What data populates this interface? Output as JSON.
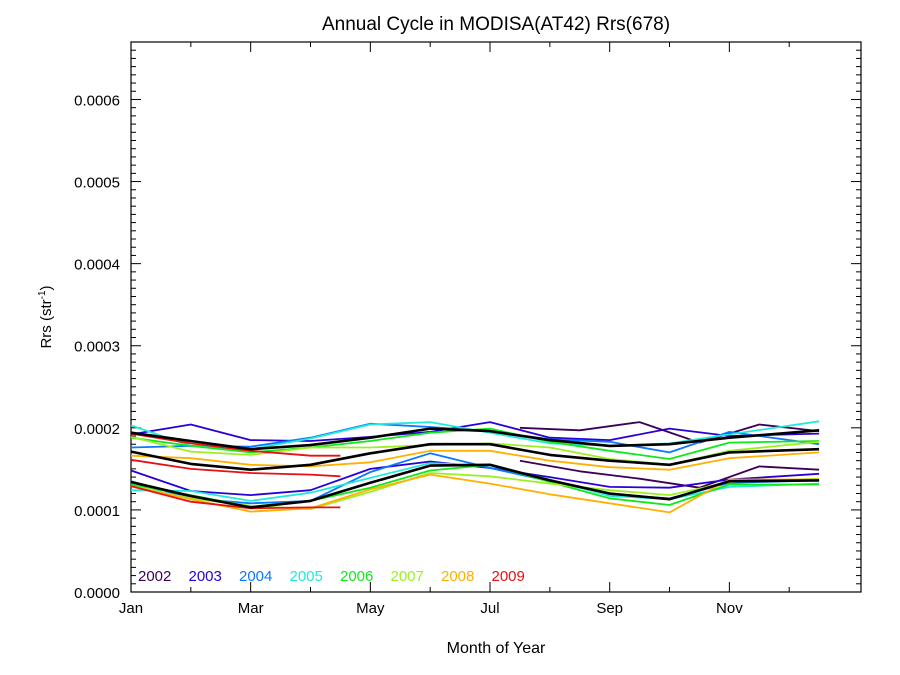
{
  "chart_data": {
    "type": "line",
    "title": "Annual Cycle in MODISA(AT42) Rrs(678)",
    "xlabel": "Month of Year",
    "ylabel": "Rrs (str",
    "ylabel_superscript": "-1",
    "ylabel_close": ")",
    "xlim": [
      1,
      13.2
    ],
    "ylim": [
      0,
      0.00067
    ],
    "x_ticks": [
      {
        "value": 1,
        "label": "Jan"
      },
      {
        "value": 3,
        "label": "Mar"
      },
      {
        "value": 5,
        "label": "May"
      },
      {
        "value": 7,
        "label": "Jul"
      },
      {
        "value": 9,
        "label": "Sep"
      },
      {
        "value": 11,
        "label": "Nov"
      }
    ],
    "y_ticks": [
      {
        "value": 0.0,
        "label": "0.0000"
      },
      {
        "value": 0.0001,
        "label": "0.0001"
      },
      {
        "value": 0.0002,
        "label": "0.0002"
      },
      {
        "value": 0.0003,
        "label": "0.0003"
      },
      {
        "value": 0.0004,
        "label": "0.0004"
      },
      {
        "value": 0.0005,
        "label": "0.0005"
      },
      {
        "value": 0.0006,
        "label": "0.0006"
      }
    ],
    "grid": false,
    "legend_position": "bottom-left",
    "series": [
      {
        "name": "2002",
        "color": "#3d0057",
        "lines": [
          {
            "x": [
              7.5,
              8.5,
              9.5,
              10.5,
              11.5,
              12.5
            ],
            "y": [
              0.0002,
              0.000197,
              0.000207,
              0.000182,
              0.000204,
              0.000196
            ]
          },
          {
            "x": [
              7.5,
              8.5,
              9.5,
              10.5,
              11.5,
              12.5
            ],
            "y": [
              0.00016,
              0.000147,
              0.000138,
              0.000127,
              0.000153,
              0.000149
            ]
          }
        ]
      },
      {
        "name": "2003",
        "color": "#2a00d6",
        "lines": [
          {
            "x": [
              1,
              2,
              3,
              4,
              5,
              6,
              7,
              8,
              9,
              10,
              11,
              12.5
            ],
            "y": [
              0.000192,
              0.000204,
              0.000185,
              0.000184,
              0.000189,
              0.000195,
              0.000207,
              0.000188,
              0.000185,
              0.000199,
              0.00019,
              0.000193
            ]
          },
          {
            "x": [
              1,
              2,
              3,
              4,
              5,
              6,
              7,
              8,
              9,
              10,
              11,
              12.5
            ],
            "y": [
              0.000148,
              0.000123,
              0.000118,
              0.000124,
              0.00015,
              0.000159,
              0.000151,
              0.00014,
              0.000128,
              0.000127,
              0.000137,
              0.000144
            ]
          }
        ]
      },
      {
        "name": "2004",
        "color": "#0a78ff",
        "lines": [
          {
            "x": [
              1,
              2,
              3,
              4,
              5,
              6,
              7,
              8,
              9,
              10,
              11,
              12.5
            ],
            "y": [
              0.000176,
              0.000178,
              0.000177,
              0.000188,
              0.000205,
              0.000201,
              0.000196,
              0.000186,
              0.000183,
              0.00017,
              0.000195,
              0.00018
            ]
          },
          {
            "x": [
              1,
              2,
              3,
              4,
              5,
              6,
              7,
              8,
              9,
              10,
              11,
              12.5
            ],
            "y": [
              0.000135,
              0.000114,
              0.000108,
              0.000111,
              0.000146,
              0.000169,
              0.000151,
              0.000135,
              0.000119,
              0.000114,
              0.000133,
              0.000136
            ]
          }
        ]
      },
      {
        "name": "2005",
        "color": "#22ead8",
        "lines": [
          {
            "x": [
              1,
              2,
              3,
              4,
              5,
              6,
              7,
              8,
              9,
              10,
              11,
              12.5
            ],
            "y": [
              0.000203,
              0.000178,
              0.000174,
              0.000187,
              0.000204,
              0.000207,
              0.000194,
              0.000181,
              0.000178,
              0.000181,
              0.000192,
              0.000208
            ]
          },
          {
            "x": [
              1,
              2,
              3,
              4,
              5,
              6,
              7,
              8,
              9,
              10,
              11,
              12.5
            ],
            "y": [
              0.000124,
              0.000123,
              0.000111,
              0.000121,
              0.000139,
              0.000157,
              0.000154,
              0.000137,
              0.000117,
              0.000113,
              0.000128,
              0.000132
            ]
          }
        ]
      },
      {
        "name": "2006",
        "color": "#10e81c",
        "lines": [
          {
            "x": [
              1,
              2,
              3,
              4,
              5,
              6,
              7,
              8,
              9,
              10,
              11,
              12.5
            ],
            "y": [
              0.000188,
              0.000178,
              0.00017,
              0.000176,
              0.000184,
              0.000194,
              0.000199,
              0.000183,
              0.000172,
              0.000162,
              0.000182,
              0.000184
            ]
          },
          {
            "x": [
              1,
              2,
              3,
              4,
              5,
              6,
              7,
              8,
              9,
              10,
              11,
              12.5
            ],
            "y": [
              0.000131,
              0.000118,
              0.000104,
              0.000111,
              0.000127,
              0.000148,
              0.000155,
              0.000134,
              0.000114,
              0.000106,
              0.000131,
              0.000131
            ]
          }
        ]
      },
      {
        "name": "2007",
        "color": "#9cf020",
        "lines": [
          {
            "x": [
              1,
              2,
              3,
              4,
              5,
              6,
              7,
              8,
              9,
              10,
              11,
              12.5
            ],
            "y": [
              0.000189,
              0.000171,
              0.000167,
              0.000176,
              0.000176,
              0.000179,
              0.000181,
              0.000176,
              0.000162,
              0.000155,
              0.000172,
              0.000183
            ]
          },
          {
            "x": [
              1,
              2,
              3,
              4,
              5,
              6,
              7,
              8,
              9,
              10,
              11,
              12.5
            ],
            "y": [
              0.000129,
              0.000114,
              0.000105,
              0.000101,
              0.000122,
              0.000145,
              0.000141,
              0.000132,
              0.000124,
              0.000118,
              0.000134,
              0.000138
            ]
          }
        ]
      },
      {
        "name": "2008",
        "color": "#ffb000",
        "lines": [
          {
            "x": [
              1,
              2,
              3,
              4,
              5,
              6,
              7,
              8,
              9,
              10,
              11,
              12.5
            ],
            "y": [
              0.000166,
              0.000163,
              0.000155,
              0.000153,
              0.000158,
              0.000172,
              0.000172,
              0.00016,
              0.000152,
              0.000149,
              0.000163,
              0.00017
            ]
          },
          {
            "x": [
              1,
              2,
              3,
              4,
              5,
              6,
              7,
              8,
              9,
              10,
              11,
              12.5
            ],
            "y": [
              0.000129,
              0.000113,
              9.8e-05,
              0.000102,
              0.000125,
              0.000143,
              0.000132,
              0.000119,
              0.000108,
              9.7e-05,
              0.000137,
              0.000137
            ]
          }
        ]
      },
      {
        "name": "2009",
        "color": "#e81010",
        "lines": [
          {
            "x": [
              1,
              2,
              3,
              4,
              4.5
            ],
            "y": [
              0.000193,
              0.000181,
              0.000172,
              0.000166,
              0.000166
            ]
          },
          {
            "x": [
              1,
              2,
              3,
              4,
              4.5
            ],
            "y": [
              0.000161,
              0.00015,
              0.000145,
              0.000143,
              0.000141
            ]
          },
          {
            "x": [
              1,
              2,
              3,
              4,
              4.5
            ],
            "y": [
              0.000129,
              0.00011,
              0.000102,
              0.000103,
              0.000103
            ]
          }
        ]
      }
    ],
    "mean_series": {
      "color": "#000000",
      "lines": [
        {
          "x": [
            1,
            2,
            3,
            4,
            5,
            6,
            7,
            8,
            9,
            10,
            11,
            12.5
          ],
          "y": [
            0.000194,
            0.000184,
            0.000174,
            0.000179,
            0.000188,
            0.000199,
            0.000196,
            0.000185,
            0.000178,
            0.00018,
            0.000188,
            0.000197
          ]
        },
        {
          "x": [
            1,
            2,
            3,
            4,
            5,
            6,
            7,
            8,
            9,
            10,
            11,
            12.5
          ],
          "y": [
            0.000171,
            0.000156,
            0.000149,
            0.000155,
            0.000169,
            0.00018,
            0.00018,
            0.000167,
            0.00016,
            0.000155,
            0.00017,
            0.000174
          ]
        },
        {
          "x": [
            1,
            2,
            3,
            4,
            5,
            6,
            7,
            8,
            9,
            10,
            11,
            12.5
          ],
          "y": [
            0.000134,
            0.000117,
            0.000103,
            0.000111,
            0.000133,
            0.000154,
            0.000155,
            0.000136,
            0.00012,
            0.000113,
            0.000135,
            0.000136
          ]
        }
      ]
    }
  }
}
